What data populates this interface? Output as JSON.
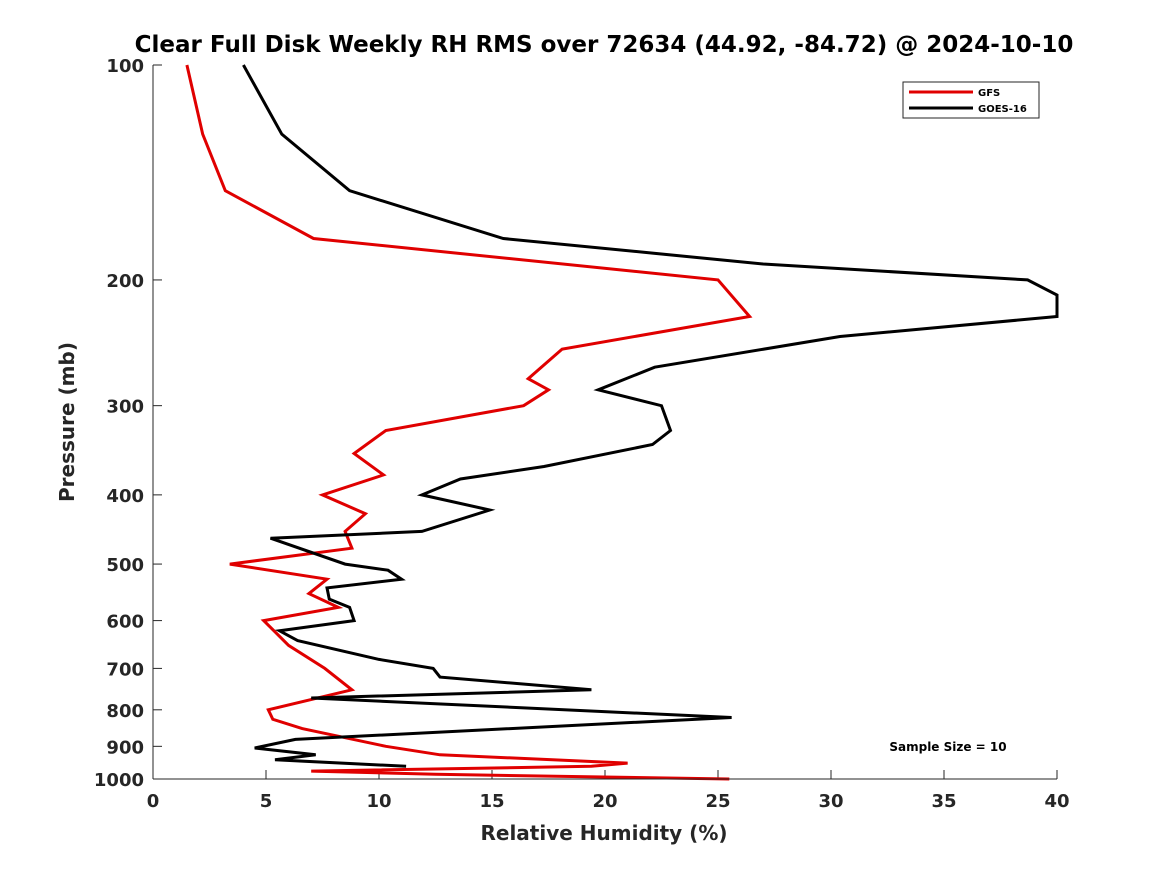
{
  "chart_data": {
    "type": "line",
    "title": "Clear Full Disk Weekly RH RMS over 72634 (44.92, -84.72) @ 2024-10-10",
    "xlabel": "Relative Humidity (%)",
    "ylabel": "Pressure (mb)",
    "xlim": [
      0,
      40
    ],
    "ylim": [
      100,
      1000
    ],
    "yscale": "log",
    "y_reversed": true,
    "xticks": [
      0,
      5,
      10,
      15,
      20,
      25,
      30,
      35,
      40
    ],
    "yticks": [
      100,
      200,
      300,
      400,
      500,
      600,
      700,
      800,
      900,
      1000
    ],
    "legend_position": "top-right",
    "annotation": "Sample Size = 10",
    "series": [
      {
        "name": "GFS",
        "color": "#e00000",
        "points": [
          [
            1.5,
            100
          ],
          [
            2.2,
            125
          ],
          [
            3.2,
            150
          ],
          [
            7.1,
            175
          ],
          [
            25.0,
            200
          ],
          [
            26.4,
            225
          ],
          [
            18.1,
            250
          ],
          [
            16.6,
            275
          ],
          [
            17.5,
            285
          ],
          [
            16.4,
            300
          ],
          [
            10.3,
            325
          ],
          [
            8.9,
            350
          ],
          [
            10.2,
            375
          ],
          [
            7.5,
            400
          ],
          [
            9.4,
            425
          ],
          [
            8.5,
            450
          ],
          [
            8.8,
            475
          ],
          [
            3.4,
            500
          ],
          [
            7.7,
            525
          ],
          [
            6.9,
            550
          ],
          [
            8.2,
            575
          ],
          [
            4.9,
            600
          ],
          [
            6.0,
            650
          ],
          [
            7.6,
            700
          ],
          [
            8.8,
            750
          ],
          [
            5.1,
            800
          ],
          [
            5.3,
            825
          ],
          [
            6.6,
            850
          ],
          [
            10.3,
            900
          ],
          [
            12.7,
            925
          ],
          [
            21.0,
            950
          ],
          [
            19.4,
            960
          ],
          [
            7.0,
            975
          ],
          [
            12.5,
            985
          ],
          [
            25.5,
            1000
          ]
        ]
      },
      {
        "name": "GOES-16",
        "color": "#000000",
        "points": [
          [
            4.0,
            100
          ],
          [
            5.7,
            125
          ],
          [
            8.7,
            150
          ],
          [
            15.5,
            175
          ],
          [
            27.0,
            190
          ],
          [
            38.7,
            200
          ],
          [
            40.0,
            210
          ],
          [
            40.0,
            225
          ],
          [
            30.4,
            240
          ],
          [
            22.2,
            265
          ],
          [
            19.7,
            285
          ],
          [
            22.5,
            300
          ],
          [
            22.9,
            325
          ],
          [
            22.1,
            340
          ],
          [
            17.3,
            365
          ],
          [
            13.6,
            380
          ],
          [
            11.9,
            400
          ],
          [
            14.9,
            420
          ],
          [
            11.9,
            450
          ],
          [
            5.2,
            460
          ],
          [
            8.5,
            500
          ],
          [
            10.4,
            510
          ],
          [
            11.0,
            525
          ],
          [
            7.7,
            540
          ],
          [
            7.8,
            560
          ],
          [
            8.7,
            575
          ],
          [
            8.9,
            600
          ],
          [
            5.6,
            620
          ],
          [
            6.4,
            640
          ],
          [
            10.0,
            680
          ],
          [
            12.4,
            700
          ],
          [
            12.7,
            720
          ],
          [
            19.4,
            750
          ],
          [
            7.0,
            770
          ],
          [
            25.6,
            820
          ],
          [
            6.3,
            880
          ],
          [
            4.5,
            905
          ],
          [
            7.2,
            925
          ],
          [
            5.4,
            940
          ],
          [
            11.2,
            960
          ]
        ]
      }
    ]
  }
}
